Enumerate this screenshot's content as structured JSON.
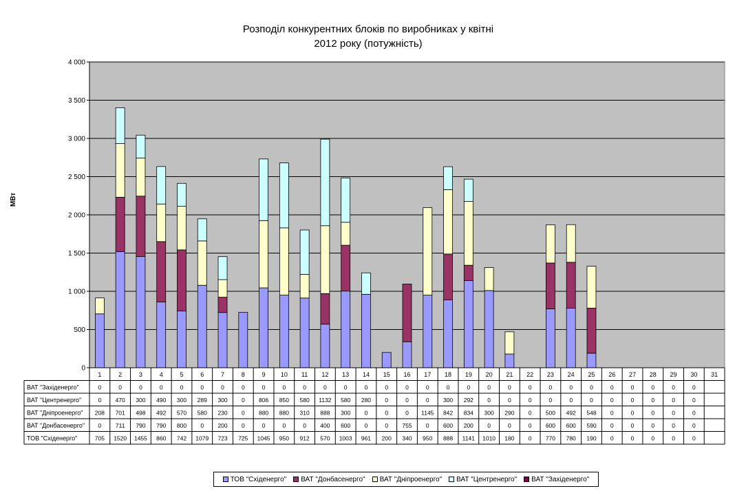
{
  "chart_data": {
    "type": "bar",
    "stacked": true,
    "title_line1": "Розподіл конкурентних блоків по виробниках у квітні",
    "title_line2": "2012 року (потужність)",
    "ylabel": "МВт",
    "ylim": [
      0,
      4000
    ],
    "yticks": [
      0,
      500,
      1000,
      1500,
      2000,
      2500,
      3000,
      3500,
      4000
    ],
    "ytick_labels": [
      "0",
      "500",
      "1 000",
      "1 500",
      "2 000",
      "2 500",
      "3 000",
      "3 500",
      "4 000"
    ],
    "categories": [
      "1",
      "2",
      "3",
      "4",
      "5",
      "6",
      "7",
      "8",
      "9",
      "10",
      "11",
      "12",
      "13",
      "14",
      "15",
      "16",
      "17",
      "18",
      "19",
      "20",
      "21",
      "22",
      "23",
      "24",
      "25",
      "26",
      "27",
      "28",
      "29",
      "30",
      "31"
    ],
    "plot_background": "#c0c0c0",
    "gridlines": true,
    "series": [
      {
        "name": "ТОВ \"Східенерго\"",
        "color": "#9999ff",
        "values": [
          705,
          1520,
          1455,
          860,
          742,
          1079,
          723,
          725,
          1045,
          950,
          912,
          570,
          1003,
          961,
          200,
          340,
          950,
          888,
          1141,
          1010,
          180,
          0,
          770,
          780,
          190,
          0,
          0,
          0,
          0,
          0,
          null
        ]
      },
      {
        "name": "ВАТ \"Донбасенерго\"",
        "color": "#993366",
        "values": [
          0,
          711,
          790,
          790,
          800,
          0,
          200,
          0,
          0,
          0,
          0,
          400,
          600,
          0,
          0,
          755,
          0,
          600,
          200,
          0,
          0,
          0,
          600,
          600,
          590,
          0,
          0,
          0,
          0,
          0,
          null
        ]
      },
      {
        "name": "ВАТ \"Дніпроенерго\"",
        "color": "#ffffcc",
        "values": [
          208,
          701,
          498,
          492,
          570,
          580,
          230,
          0,
          880,
          880,
          310,
          888,
          300,
          0,
          0,
          0,
          1145,
          842,
          834,
          300,
          290,
          0,
          500,
          492,
          548,
          0,
          0,
          0,
          0,
          0,
          null
        ]
      },
      {
        "name": "ВАТ \"Центренерго\"",
        "color": "#ccffff",
        "values": [
          0,
          470,
          300,
          490,
          300,
          289,
          300,
          0,
          806,
          850,
          580,
          1132,
          580,
          280,
          0,
          0,
          0,
          300,
          292,
          0,
          0,
          0,
          0,
          0,
          0,
          0,
          0,
          0,
          0,
          0,
          null
        ]
      },
      {
        "name": "ВАТ \"Західенерго\"",
        "color": "#800040",
        "values": [
          0,
          0,
          0,
          0,
          0,
          0,
          0,
          0,
          0,
          0,
          0,
          0,
          0,
          0,
          0,
          0,
          0,
          0,
          0,
          0,
          0,
          0,
          0,
          0,
          0,
          0,
          0,
          0,
          0,
          0,
          null
        ]
      }
    ],
    "table_row_order": [
      4,
      3,
      2,
      1,
      0
    ],
    "legend_position": "bottom"
  }
}
